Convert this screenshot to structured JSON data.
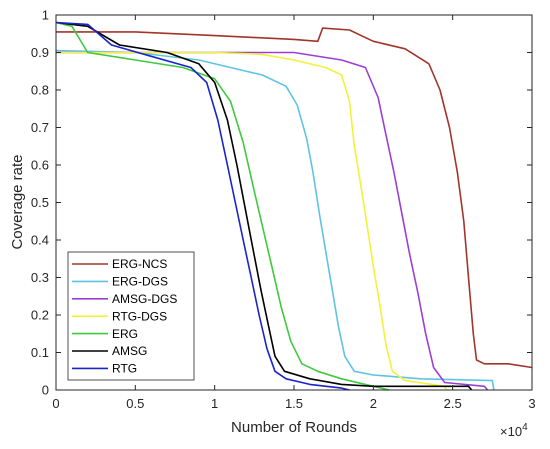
{
  "chart_data": {
    "type": "line",
    "xlabel": "Number of Rounds",
    "ylabel": "Coverage rate",
    "x_multiplier_label": "×10",
    "x_multiplier_exponent": "4",
    "xlim": [
      0,
      3
    ],
    "ylim": [
      0,
      1
    ],
    "x_ticks": [
      0,
      0.5,
      1,
      1.5,
      2,
      2.5,
      3
    ],
    "x_tick_labels": [
      "0",
      "0.5",
      "1",
      "1.5",
      "2",
      "2.5",
      "3"
    ],
    "y_ticks": [
      0,
      0.1,
      0.2,
      0.3,
      0.4,
      0.5,
      0.6,
      0.7,
      0.8,
      0.9,
      1
    ],
    "y_tick_labels": [
      "0",
      "0.1",
      "0.2",
      "0.3",
      "0.4",
      "0.5",
      "0.6",
      "0.7",
      "0.8",
      "0.9",
      "1"
    ],
    "grid": false,
    "legend_position": "bottom-left",
    "series": [
      {
        "name": "ERG-NCS",
        "color": "#a2352a",
        "points": [
          [
            0,
            0.955
          ],
          [
            0.5,
            0.955
          ],
          [
            1.0,
            0.945
          ],
          [
            1.5,
            0.935
          ],
          [
            1.65,
            0.93
          ],
          [
            1.68,
            0.965
          ],
          [
            1.85,
            0.96
          ],
          [
            2.0,
            0.93
          ],
          [
            2.2,
            0.91
          ],
          [
            2.35,
            0.87
          ],
          [
            2.42,
            0.8
          ],
          [
            2.48,
            0.7
          ],
          [
            2.53,
            0.58
          ],
          [
            2.57,
            0.45
          ],
          [
            2.6,
            0.3
          ],
          [
            2.63,
            0.15
          ],
          [
            2.65,
            0.08
          ],
          [
            2.7,
            0.07
          ],
          [
            2.85,
            0.07
          ],
          [
            3.0,
            0.06
          ]
        ]
      },
      {
        "name": "ERG-DGS",
        "color": "#5fc4e2",
        "points": [
          [
            0,
            0.905
          ],
          [
            0.5,
            0.9
          ],
          [
            0.9,
            0.88
          ],
          [
            1.1,
            0.86
          ],
          [
            1.3,
            0.84
          ],
          [
            1.45,
            0.81
          ],
          [
            1.52,
            0.76
          ],
          [
            1.58,
            0.67
          ],
          [
            1.62,
            0.58
          ],
          [
            1.66,
            0.47
          ],
          [
            1.7,
            0.37
          ],
          [
            1.74,
            0.27
          ],
          [
            1.78,
            0.17
          ],
          [
            1.82,
            0.09
          ],
          [
            1.88,
            0.05
          ],
          [
            2.0,
            0.04
          ],
          [
            2.3,
            0.03
          ],
          [
            2.75,
            0.025
          ],
          [
            2.76,
            0.0
          ]
        ]
      },
      {
        "name": "AMSG-DGS",
        "color": "#9b3fd4",
        "points": [
          [
            0,
            0.9
          ],
          [
            1.0,
            0.9
          ],
          [
            1.5,
            0.9
          ],
          [
            1.8,
            0.88
          ],
          [
            1.95,
            0.86
          ],
          [
            2.03,
            0.78
          ],
          [
            2.08,
            0.68
          ],
          [
            2.13,
            0.58
          ],
          [
            2.18,
            0.47
          ],
          [
            2.23,
            0.36
          ],
          [
            2.28,
            0.26
          ],
          [
            2.33,
            0.15
          ],
          [
            2.38,
            0.06
          ],
          [
            2.45,
            0.02
          ],
          [
            2.7,
            0.01
          ],
          [
            2.72,
            0.0
          ]
        ]
      },
      {
        "name": "RTG-DGS",
        "color": "#f2f23a",
        "points": [
          [
            0,
            0.9
          ],
          [
            1.0,
            0.9
          ],
          [
            1.3,
            0.895
          ],
          [
            1.5,
            0.88
          ],
          [
            1.7,
            0.86
          ],
          [
            1.8,
            0.84
          ],
          [
            1.85,
            0.77
          ],
          [
            1.88,
            0.65
          ],
          [
            1.92,
            0.55
          ],
          [
            1.96,
            0.44
          ],
          [
            2.0,
            0.33
          ],
          [
            2.04,
            0.23
          ],
          [
            2.08,
            0.12
          ],
          [
            2.12,
            0.05
          ],
          [
            2.2,
            0.025
          ],
          [
            2.45,
            0.01
          ],
          [
            2.46,
            0.0
          ]
        ]
      },
      {
        "name": "ERG",
        "color": "#3ec93e",
        "points": [
          [
            0,
            0.98
          ],
          [
            0.1,
            0.97
          ],
          [
            0.2,
            0.9
          ],
          [
            0.5,
            0.88
          ],
          [
            0.8,
            0.86
          ],
          [
            1.0,
            0.83
          ],
          [
            1.1,
            0.77
          ],
          [
            1.18,
            0.66
          ],
          [
            1.25,
            0.53
          ],
          [
            1.31,
            0.42
          ],
          [
            1.36,
            0.33
          ],
          [
            1.42,
            0.22
          ],
          [
            1.48,
            0.13
          ],
          [
            1.55,
            0.07
          ],
          [
            1.65,
            0.05
          ],
          [
            1.8,
            0.03
          ],
          [
            2.0,
            0.01
          ],
          [
            2.1,
            0.0
          ]
        ]
      },
      {
        "name": "AMSG",
        "color": "#000000",
        "points": [
          [
            0,
            0.98
          ],
          [
            0.2,
            0.97
          ],
          [
            0.4,
            0.92
          ],
          [
            0.7,
            0.9
          ],
          [
            0.9,
            0.87
          ],
          [
            1.0,
            0.82
          ],
          [
            1.08,
            0.72
          ],
          [
            1.14,
            0.6
          ],
          [
            1.19,
            0.49
          ],
          [
            1.24,
            0.38
          ],
          [
            1.29,
            0.27
          ],
          [
            1.34,
            0.17
          ],
          [
            1.38,
            0.09
          ],
          [
            1.44,
            0.05
          ],
          [
            1.6,
            0.03
          ],
          [
            1.8,
            0.015
          ],
          [
            2.0,
            0.01
          ],
          [
            2.6,
            0.01
          ],
          [
            2.62,
            0.0
          ]
        ]
      },
      {
        "name": "RTG",
        "color": "#1a24c9",
        "points": [
          [
            0,
            0.98
          ],
          [
            0.2,
            0.975
          ],
          [
            0.35,
            0.92
          ],
          [
            0.6,
            0.89
          ],
          [
            0.85,
            0.86
          ],
          [
            0.95,
            0.82
          ],
          [
            1.02,
            0.72
          ],
          [
            1.08,
            0.6
          ],
          [
            1.13,
            0.5
          ],
          [
            1.18,
            0.4
          ],
          [
            1.23,
            0.3
          ],
          [
            1.28,
            0.2
          ],
          [
            1.33,
            0.11
          ],
          [
            1.38,
            0.05
          ],
          [
            1.45,
            0.03
          ],
          [
            1.6,
            0.015
          ],
          [
            1.8,
            0.005
          ],
          [
            1.85,
            0.0
          ]
        ]
      }
    ]
  }
}
